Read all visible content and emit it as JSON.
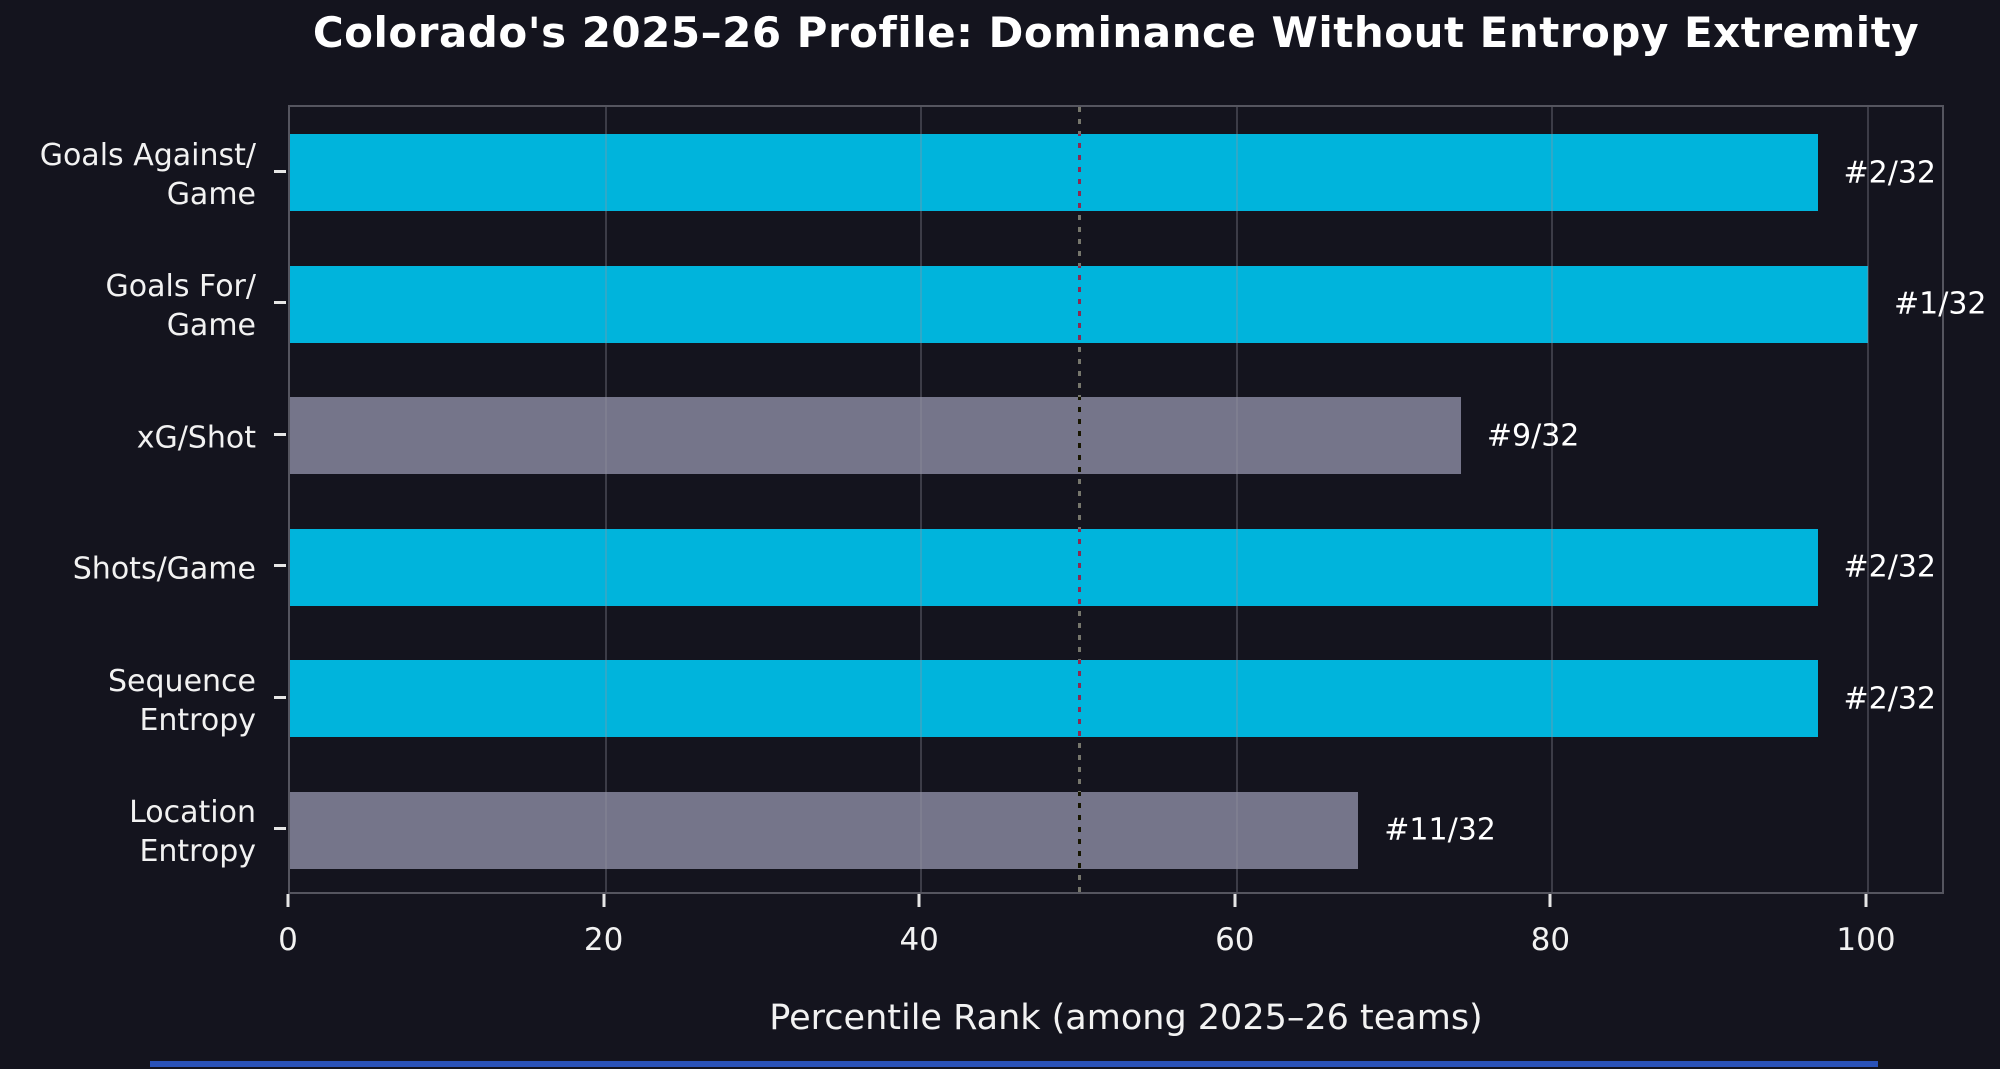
{
  "title": "Colorado's 2025–26 Profile: Dominance Without Entropy Extremity",
  "colors": {
    "background": "#14141e",
    "bar_highlight": "#00b4dc",
    "bar_muted": "#75758a",
    "spine": "#55555f",
    "grid": "rgba(145,145,158,0.32)",
    "text": "#f2f2f2",
    "median_line": "#8a8a8a",
    "bottom_strip": "#2a52b8"
  },
  "chart_data": {
    "type": "bar",
    "orientation": "horizontal",
    "title": "Colorado's 2025–26 Profile: Dominance Without Entropy Extremity",
    "xlabel": "Percentile Rank (among 2025–26 teams)",
    "ylabel": "",
    "xlim": [
      0,
      100
    ],
    "xticks": [
      "0",
      "20",
      "40",
      "60",
      "80",
      "100"
    ],
    "xtick_values": [
      0,
      20,
      40,
      60,
      80,
      100
    ],
    "grid": true,
    "reference_line_x": 50,
    "legend": null,
    "n_teams": 32,
    "rows": [
      {
        "label_lines": [
          "Goals Against/",
          "Game"
        ],
        "value": 96.8,
        "rank": 2,
        "rank_label": "#2/32",
        "highlight": true
      },
      {
        "label_lines": [
          "Goals For/",
          "Game"
        ],
        "value": 100,
        "rank": 1,
        "rank_label": "#1/32",
        "highlight": true
      },
      {
        "label_lines": [
          "xG/Shot"
        ],
        "value": 74.2,
        "rank": 9,
        "rank_label": "#9/32",
        "highlight": false
      },
      {
        "label_lines": [
          "Shots/Game"
        ],
        "value": 96.8,
        "rank": 2,
        "rank_label": "#2/32",
        "highlight": true
      },
      {
        "label_lines": [
          "Sequence",
          "Entropy"
        ],
        "value": 96.8,
        "rank": 2,
        "rank_label": "#2/32",
        "highlight": true
      },
      {
        "label_lines": [
          "Location",
          "Entropy"
        ],
        "value": 67.7,
        "rank": 11,
        "rank_label": "#11/32",
        "highlight": false
      }
    ]
  }
}
